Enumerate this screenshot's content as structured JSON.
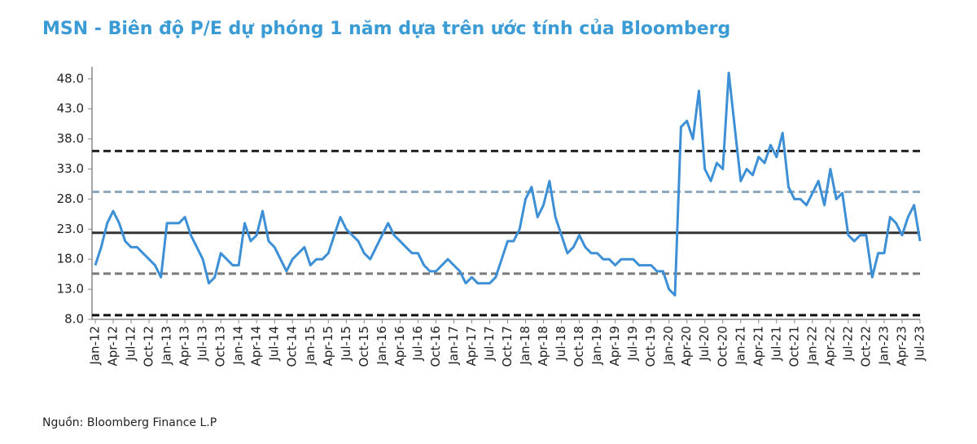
{
  "chart_data": {
    "type": "line",
    "title": "MSN - Biên độ P/E dự phóng 1 năm dựa trên ước tính của Bloomberg",
    "source": "Nguồn: Bloomberg Finance L.P",
    "categories": [
      "Jan-12",
      null,
      null,
      "Apr-12",
      null,
      null,
      "Jul-12",
      null,
      null,
      "Oct-12",
      null,
      null,
      "Jan-13",
      null,
      null,
      "Apr-13",
      null,
      null,
      "Jul-13",
      null,
      null,
      "Oct-13",
      null,
      null,
      "Jan-14",
      null,
      null,
      "Apr-14",
      null,
      null,
      "Jul-14",
      null,
      null,
      "Oct-14",
      null,
      null,
      "Jan-15",
      null,
      null,
      "Apr-15",
      null,
      null,
      "Jul-15",
      null,
      null,
      "Oct-15",
      null,
      null,
      "Jan-16",
      null,
      null,
      "Apr-16",
      null,
      null,
      "Jul-16",
      null,
      null,
      "Oct-16",
      null,
      null,
      "Jan-17",
      null,
      null,
      "Apr-17",
      null,
      null,
      "Jul-17",
      null,
      null,
      "Oct-17",
      null,
      null,
      "Jan-18",
      null,
      null,
      "Apr-18",
      null,
      null,
      "Jul-18",
      null,
      null,
      "Oct-18",
      null,
      null,
      "Jan-19",
      null,
      null,
      "Apr-19",
      null,
      null,
      "Jul-19",
      null,
      null,
      "Oct-19",
      null,
      null,
      "Jan-20",
      null,
      null,
      "Apr-20",
      null,
      null,
      "Jul-20",
      null,
      null,
      "Oct-20",
      null,
      null,
      "Jan-21",
      null,
      null,
      "Apr-21",
      null,
      null,
      "Jul-21",
      null,
      null,
      "Oct-21",
      null,
      null,
      "Jan-22",
      null,
      null,
      "Apr-22",
      null,
      null,
      "Jul-22",
      null,
      null,
      "Oct-22",
      null,
      null,
      "Jan-23",
      null,
      null,
      "Apr-23",
      null,
      null,
      "Jul-23"
    ],
    "series": [
      {
        "color": "#3d8fd6",
        "values": [
          17,
          20,
          24,
          26,
          24,
          21,
          20,
          20,
          19,
          18,
          17,
          15,
          24,
          24,
          24,
          25,
          22,
          20,
          18,
          14,
          15,
          19,
          18,
          17,
          17,
          24,
          21,
          22,
          26,
          21,
          20,
          18,
          16,
          18,
          19,
          20,
          17,
          18,
          18,
          19,
          22,
          25,
          23,
          22,
          21,
          19,
          18,
          20,
          22,
          24,
          22,
          21,
          20,
          19,
          19,
          17,
          16,
          16,
          17,
          18,
          17,
          16,
          14,
          15,
          14,
          14,
          14,
          15,
          18,
          21,
          21,
          23,
          28,
          30,
          25,
          27,
          31,
          25,
          22,
          19,
          20,
          22,
          20,
          19,
          19,
          18,
          18,
          17,
          18,
          18,
          18,
          17,
          17,
          17,
          16,
          16,
          13,
          12,
          40,
          41,
          38,
          46,
          33,
          31,
          34,
          33,
          49,
          40,
          31,
          33,
          32,
          35,
          34,
          37,
          35,
          39,
          30,
          28,
          28,
          27,
          29,
          31,
          27,
          33,
          28,
          29,
          22,
          21,
          22,
          22,
          15,
          19,
          19,
          25,
          24,
          22,
          25,
          27,
          21
        ]
      }
    ],
    "reference_lines": [
      {
        "value": 36.0,
        "color": "#222222",
        "dash": true
      },
      {
        "value": 29.2,
        "color": "#8fa9bf",
        "dash": true
      },
      {
        "value": 22.4,
        "color": "#333333",
        "dash": false
      },
      {
        "value": 15.6,
        "color": "#7a7a7a",
        "dash": true
      },
      {
        "value": 8.7,
        "color": "#111111",
        "dash": true
      }
    ],
    "ylim": [
      8,
      50
    ],
    "yticks": [
      {
        "value": 8,
        "label": "8.0"
      },
      {
        "value": 13,
        "label": "13.0"
      },
      {
        "value": 18,
        "label": "18.0"
      },
      {
        "value": 23,
        "label": "23.0"
      },
      {
        "value": 28,
        "label": "28.0"
      },
      {
        "value": 33,
        "label": "33.0"
      },
      {
        "value": 38,
        "label": "38.0"
      },
      {
        "value": 43,
        "label": "43.0"
      },
      {
        "value": 48,
        "label": "48.0"
      }
    ]
  }
}
